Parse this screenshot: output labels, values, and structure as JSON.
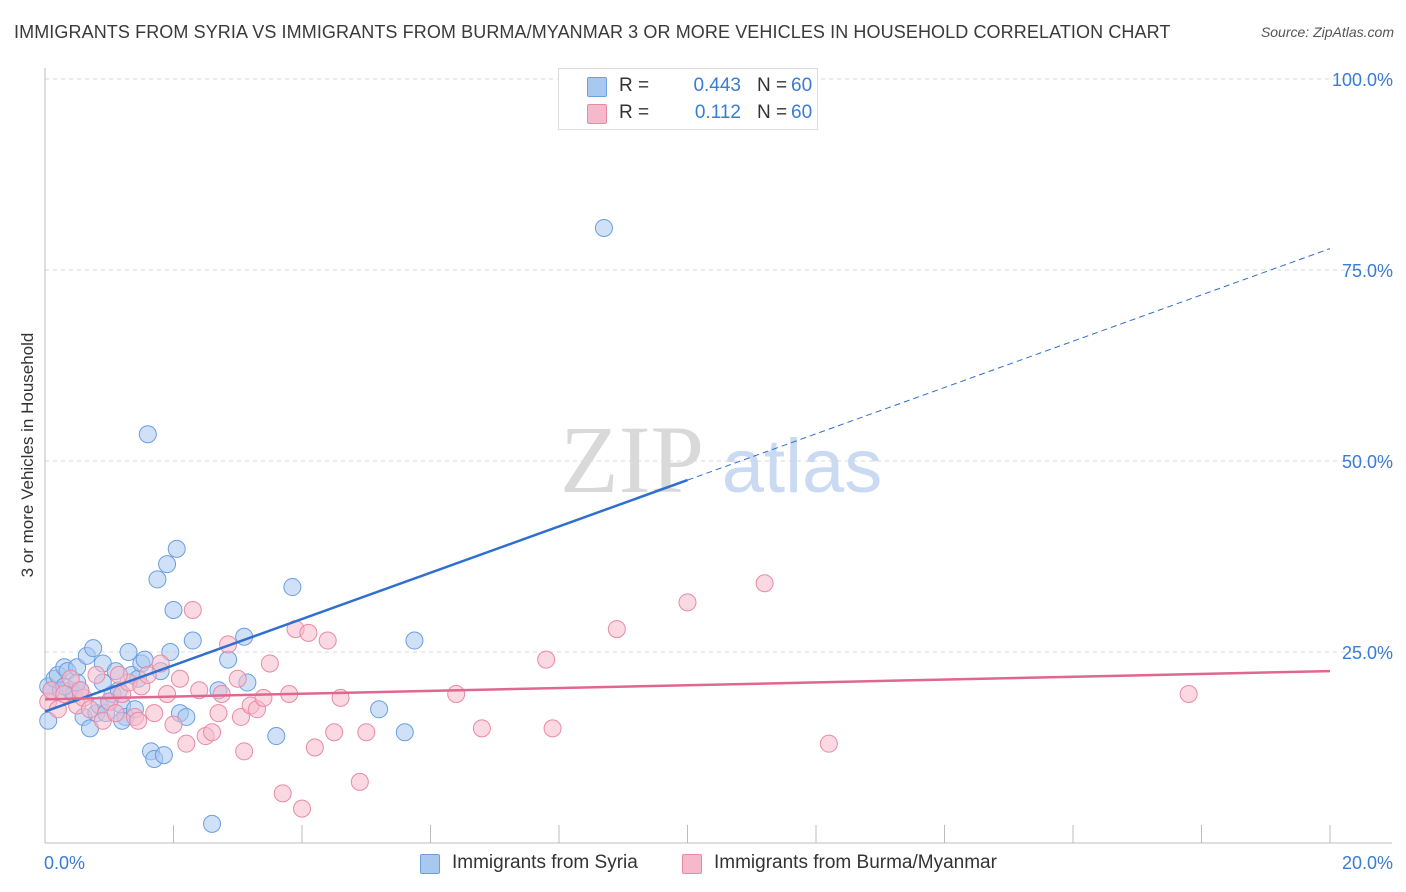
{
  "header": {
    "title": "IMMIGRANTS FROM SYRIA VS IMMIGRANTS FROM BURMA/MYANMAR 3 OR MORE VEHICLES IN HOUSEHOLD CORRELATION CHART",
    "source": "Source: ZipAtlas.com"
  },
  "watermark": {
    "zip": "ZIP",
    "atlas": "atlas"
  },
  "legend_top": {
    "r_label": "R =",
    "n_label": "N =",
    "rows": [
      {
        "r": "0.443",
        "n": "60"
      },
      {
        "r": "0.112",
        "n": "60"
      }
    ]
  },
  "colors": {
    "blue_fill": "#a9c8f0",
    "blue_stroke": "#6a9fe0",
    "blue_line": "#2f6fce",
    "pink_fill": "#f5b9cb",
    "pink_stroke": "#e88aa6",
    "pink_line": "#e06790",
    "axis_text": "#3a7bd5",
    "grid": "#d9d9d9"
  },
  "chart_data": {
    "type": "scatter",
    "title": "IMMIGRANTS FROM SYRIA VS IMMIGRANTS FROM BURMA/MYANMAR 3 OR MORE VEHICLES IN HOUSEHOLD CORRELATION CHART",
    "xlabel": "",
    "ylabel": "3 or more Vehicles in Household",
    "xlim": [
      0,
      20
    ],
    "ylim": [
      0,
      100
    ],
    "x_ticks": [
      "0.0%",
      "20.0%"
    ],
    "y_ticks": [
      {
        "value": 25,
        "label": "25.0%"
      },
      {
        "value": 50,
        "label": "50.0%"
      },
      {
        "value": 75,
        "label": "75.0%"
      },
      {
        "value": 100,
        "label": "100.0%"
      }
    ],
    "legend_position": "bottom-center",
    "series": [
      {
        "name": "Immigrants from Syria",
        "color": "blue",
        "R": 0.443,
        "N": 60,
        "trend": {
          "x0": 0,
          "y0": 17.2,
          "x_solid_end": 10,
          "x1": 20,
          "y1": 77.8
        },
        "points": [
          [
            0.05,
            20.5
          ],
          [
            0.05,
            16.0
          ],
          [
            0.1,
            20.0
          ],
          [
            0.15,
            21.5
          ],
          [
            0.2,
            22.0
          ],
          [
            0.25,
            20.0
          ],
          [
            0.3,
            23.0
          ],
          [
            0.35,
            22.5
          ],
          [
            0.4,
            20.0
          ],
          [
            0.45,
            19.5
          ],
          [
            0.5,
            23.0
          ],
          [
            0.55,
            20.0
          ],
          [
            0.6,
            16.5
          ],
          [
            0.65,
            24.5
          ],
          [
            0.7,
            15.0
          ],
          [
            0.75,
            25.5
          ],
          [
            0.8,
            17.0
          ],
          [
            0.85,
            18.0
          ],
          [
            0.9,
            23.5
          ],
          [
            0.95,
            17.0
          ],
          [
            1.0,
            18.5
          ],
          [
            1.05,
            19.5
          ],
          [
            1.1,
            22.5
          ],
          [
            1.15,
            20.0
          ],
          [
            1.2,
            18.0
          ],
          [
            1.25,
            16.5
          ],
          [
            1.3,
            25.0
          ],
          [
            1.35,
            22.0
          ],
          [
            1.4,
            17.5
          ],
          [
            1.45,
            21.5
          ],
          [
            1.5,
            23.5
          ],
          [
            1.55,
            24.0
          ],
          [
            1.6,
            53.5
          ],
          [
            1.65,
            12.0
          ],
          [
            1.7,
            11.0
          ],
          [
            1.75,
            34.5
          ],
          [
            1.8,
            22.5
          ],
          [
            1.85,
            11.5
          ],
          [
            1.9,
            36.5
          ],
          [
            1.95,
            25.0
          ],
          [
            2.0,
            30.5
          ],
          [
            2.05,
            38.5
          ],
          [
            2.1,
            17.0
          ],
          [
            2.2,
            16.5
          ],
          [
            2.3,
            26.5
          ],
          [
            2.6,
            2.5
          ],
          [
            2.7,
            20.0
          ],
          [
            2.85,
            24.0
          ],
          [
            3.1,
            27.0
          ],
          [
            3.15,
            21.0
          ],
          [
            3.6,
            14.0
          ],
          [
            3.85,
            33.5
          ],
          [
            5.2,
            17.5
          ],
          [
            5.6,
            14.5
          ],
          [
            5.75,
            26.5
          ],
          [
            8.7,
            80.5
          ],
          [
            0.3,
            20.5
          ],
          [
            0.5,
            21.0
          ],
          [
            1.2,
            16.0
          ],
          [
            0.9,
            21.0
          ]
        ]
      },
      {
        "name": "Immigrants from Burma/Myanmar",
        "color": "pink",
        "R": 0.112,
        "N": 60,
        "trend": {
          "x0": 0,
          "y0": 18.8,
          "x1": 20,
          "y1": 22.5
        },
        "points": [
          [
            0.05,
            18.5
          ],
          [
            0.1,
            20.0
          ],
          [
            0.2,
            17.5
          ],
          [
            0.3,
            19.5
          ],
          [
            0.4,
            21.5
          ],
          [
            0.5,
            18.0
          ],
          [
            0.6,
            19.0
          ],
          [
            0.7,
            17.5
          ],
          [
            0.8,
            22.0
          ],
          [
            0.9,
            16.0
          ],
          [
            1.0,
            18.5
          ],
          [
            1.1,
            17.0
          ],
          [
            1.2,
            19.5
          ],
          [
            1.3,
            21.0
          ],
          [
            1.4,
            16.5
          ],
          [
            1.5,
            20.5
          ],
          [
            1.6,
            22.0
          ],
          [
            1.7,
            17.0
          ],
          [
            1.8,
            23.5
          ],
          [
            1.9,
            19.5
          ],
          [
            2.0,
            15.5
          ],
          [
            2.1,
            21.5
          ],
          [
            2.2,
            13.0
          ],
          [
            2.3,
            30.5
          ],
          [
            2.4,
            20.0
          ],
          [
            2.5,
            14.0
          ],
          [
            2.6,
            14.5
          ],
          [
            2.7,
            17.0
          ],
          [
            2.75,
            19.5
          ],
          [
            2.85,
            26.0
          ],
          [
            3.0,
            21.5
          ],
          [
            3.05,
            16.5
          ],
          [
            3.1,
            12.0
          ],
          [
            3.2,
            18.0
          ],
          [
            3.3,
            17.5
          ],
          [
            3.4,
            19.0
          ],
          [
            3.5,
            23.5
          ],
          [
            3.7,
            6.5
          ],
          [
            3.8,
            19.5
          ],
          [
            3.9,
            28.0
          ],
          [
            4.0,
            4.5
          ],
          [
            4.1,
            27.5
          ],
          [
            4.2,
            12.5
          ],
          [
            4.4,
            26.5
          ],
          [
            4.5,
            14.5
          ],
          [
            4.6,
            19.0
          ],
          [
            4.9,
            8.0
          ],
          [
            5.0,
            14.5
          ],
          [
            6.4,
            19.5
          ],
          [
            6.8,
            15.0
          ],
          [
            7.8,
            24.0
          ],
          [
            7.9,
            15.0
          ],
          [
            8.9,
            28.0
          ],
          [
            10.0,
            31.5
          ],
          [
            11.2,
            34.0
          ],
          [
            12.2,
            13.0
          ],
          [
            17.8,
            19.5
          ],
          [
            1.15,
            22.0
          ],
          [
            0.55,
            20.0
          ],
          [
            1.45,
            16.0
          ]
        ]
      }
    ]
  },
  "legend_bottom": {
    "items": [
      {
        "label": "Immigrants from Syria"
      },
      {
        "label": "Immigrants from Burma/Myanmar"
      }
    ]
  }
}
